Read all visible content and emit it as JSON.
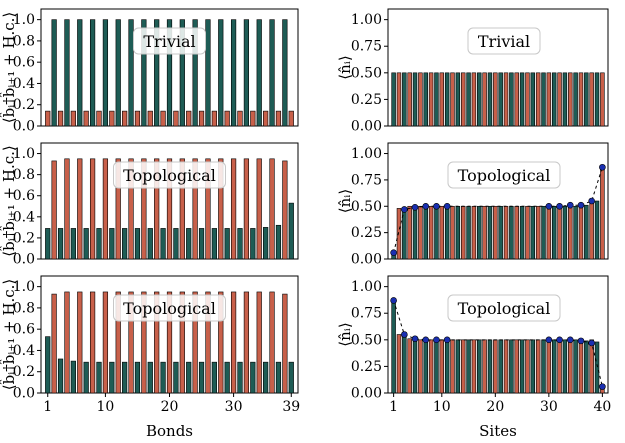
{
  "colors": {
    "red": "#c8604a",
    "teal": "#1e5c55",
    "dot": "#1a2fb0",
    "edge": "#000000"
  },
  "chart_data": [
    {
      "type": "bar",
      "column": "bonds",
      "row": 0,
      "ylabel": "⟨b̂ᵢ†b̂ᵢ₊₁ + H.c.⟩",
      "xlabel": "",
      "ylim": [
        0,
        1.1
      ],
      "yticks": [
        "0.0",
        "0.2",
        "0.4",
        "0.6",
        "0.8",
        "1.0"
      ],
      "xticks": [],
      "annotation": "Trivial",
      "x": [
        1,
        2,
        3,
        4,
        5,
        6,
        7,
        8,
        9,
        10,
        11,
        12,
        13,
        14,
        15,
        16,
        17,
        18,
        19,
        20,
        21,
        22,
        23,
        24,
        25,
        26,
        27,
        28,
        29,
        30,
        31,
        32,
        33,
        34,
        35,
        36,
        37,
        38,
        39
      ],
      "values": [
        0.14,
        1.0,
        0.14,
        1.0,
        0.14,
        1.0,
        0.14,
        1.0,
        0.14,
        1.0,
        0.14,
        1.0,
        0.14,
        1.0,
        0.14,
        1.0,
        0.14,
        1.0,
        0.14,
        1.0,
        0.14,
        1.0,
        0.14,
        1.0,
        0.14,
        1.0,
        0.14,
        1.0,
        0.14,
        1.0,
        0.14,
        1.0,
        0.14,
        1.0,
        0.14,
        1.0,
        0.14,
        1.0,
        0.14
      ]
    },
    {
      "type": "bar",
      "column": "sites",
      "row": 0,
      "ylabel": "⟨n̂ᵢ⟩",
      "xlabel": "",
      "ylim": [
        0,
        1.1
      ],
      "yticks": [
        "0.00",
        "0.25",
        "0.50",
        "0.75",
        "1.00"
      ],
      "xticks": [],
      "annotation": "Trivial",
      "x": [
        1,
        2,
        3,
        4,
        5,
        6,
        7,
        8,
        9,
        10,
        11,
        12,
        13,
        14,
        15,
        16,
        17,
        18,
        19,
        20,
        21,
        22,
        23,
        24,
        25,
        26,
        27,
        28,
        29,
        30,
        31,
        32,
        33,
        34,
        35,
        36,
        37,
        38,
        39,
        40
      ],
      "values": [
        0.5,
        0.5,
        0.5,
        0.5,
        0.5,
        0.5,
        0.5,
        0.5,
        0.5,
        0.5,
        0.5,
        0.5,
        0.5,
        0.5,
        0.5,
        0.5,
        0.5,
        0.5,
        0.5,
        0.5,
        0.5,
        0.5,
        0.5,
        0.5,
        0.5,
        0.5,
        0.5,
        0.5,
        0.5,
        0.5,
        0.5,
        0.5,
        0.5,
        0.5,
        0.5,
        0.5,
        0.5,
        0.5,
        0.5,
        0.5
      ],
      "dots": []
    },
    {
      "type": "bar",
      "column": "bonds",
      "row": 1,
      "ylabel": "⟨b̂ᵢ†b̂ᵢ₊₁ + H.c.⟩",
      "xlabel": "",
      "ylim": [
        0,
        1.1
      ],
      "yticks": [
        "0.0",
        "0.2",
        "0.4",
        "0.6",
        "0.8",
        "1.0"
      ],
      "xticks": [],
      "annotation": "Topological",
      "x": [
        1,
        2,
        3,
        4,
        5,
        6,
        7,
        8,
        9,
        10,
        11,
        12,
        13,
        14,
        15,
        16,
        17,
        18,
        19,
        20,
        21,
        22,
        23,
        24,
        25,
        26,
        27,
        28,
        29,
        30,
        31,
        32,
        33,
        34,
        35,
        36,
        37,
        38,
        39
      ],
      "values": [
        0.29,
        0.93,
        0.29,
        0.95,
        0.29,
        0.95,
        0.29,
        0.95,
        0.29,
        0.95,
        0.29,
        0.95,
        0.29,
        0.95,
        0.29,
        0.95,
        0.29,
        0.95,
        0.29,
        0.95,
        0.29,
        0.95,
        0.29,
        0.95,
        0.29,
        0.95,
        0.29,
        0.95,
        0.29,
        0.95,
        0.29,
        0.95,
        0.29,
        0.95,
        0.3,
        0.95,
        0.32,
        0.93,
        0.53
      ]
    },
    {
      "type": "bar",
      "column": "sites",
      "row": 1,
      "ylabel": "⟨n̂ᵢ⟩",
      "xlabel": "",
      "ylim": [
        0,
        1.1
      ],
      "yticks": [
        "0.00",
        "0.25",
        "0.50",
        "0.75",
        "1.00"
      ],
      "xticks": [],
      "annotation": "Topological",
      "x": [
        1,
        2,
        3,
        4,
        5,
        6,
        7,
        8,
        9,
        10,
        11,
        12,
        13,
        14,
        15,
        16,
        17,
        18,
        19,
        20,
        21,
        22,
        23,
        24,
        25,
        26,
        27,
        28,
        29,
        30,
        31,
        32,
        33,
        34,
        35,
        36,
        37,
        38,
        39,
        40
      ],
      "values": [
        0.06,
        0.48,
        0.49,
        0.5,
        0.49,
        0.5,
        0.5,
        0.5,
        0.5,
        0.5,
        0.5,
        0.5,
        0.5,
        0.5,
        0.5,
        0.5,
        0.5,
        0.5,
        0.5,
        0.5,
        0.5,
        0.5,
        0.5,
        0.5,
        0.5,
        0.5,
        0.5,
        0.5,
        0.5,
        0.5,
        0.5,
        0.5,
        0.5,
        0.5,
        0.5,
        0.51,
        0.51,
        0.53,
        0.55,
        0.87
      ],
      "dots": [
        [
          1,
          0.06
        ],
        [
          3,
          0.47
        ],
        [
          5,
          0.49
        ],
        [
          7,
          0.5
        ],
        [
          9,
          0.5
        ],
        [
          11,
          0.5
        ],
        [
          30,
          0.5
        ],
        [
          32,
          0.5
        ],
        [
          34,
          0.51
        ],
        [
          36,
          0.51
        ],
        [
          38,
          0.55
        ],
        [
          40,
          0.87
        ]
      ]
    },
    {
      "type": "bar",
      "column": "bonds",
      "row": 2,
      "ylabel": "⟨b̂ᵢ†b̂ᵢ₊₁ + H.c.⟩",
      "xlabel": "Bonds",
      "ylim": [
        0,
        1.1
      ],
      "yticks": [
        "0.0",
        "0.2",
        "0.4",
        "0.6",
        "0.8",
        "1.0"
      ],
      "xticks": [
        "1",
        "10",
        "20",
        "30",
        "39"
      ],
      "xtick_values": [
        1,
        10,
        20,
        30,
        39
      ],
      "annotation": "Topological",
      "x": [
        1,
        2,
        3,
        4,
        5,
        6,
        7,
        8,
        9,
        10,
        11,
        12,
        13,
        14,
        15,
        16,
        17,
        18,
        19,
        20,
        21,
        22,
        23,
        24,
        25,
        26,
        27,
        28,
        29,
        30,
        31,
        32,
        33,
        34,
        35,
        36,
        37,
        38,
        39
      ],
      "values": [
        0.53,
        0.93,
        0.32,
        0.95,
        0.3,
        0.95,
        0.29,
        0.95,
        0.29,
        0.95,
        0.29,
        0.95,
        0.29,
        0.95,
        0.29,
        0.95,
        0.29,
        0.95,
        0.29,
        0.95,
        0.29,
        0.95,
        0.29,
        0.95,
        0.29,
        0.95,
        0.29,
        0.95,
        0.29,
        0.95,
        0.29,
        0.95,
        0.29,
        0.95,
        0.29,
        0.95,
        0.29,
        0.93,
        0.29
      ]
    },
    {
      "type": "bar",
      "column": "sites",
      "row": 2,
      "ylabel": "⟨n̂ᵢ⟩",
      "xlabel": "Sites",
      "ylim": [
        0,
        1.1
      ],
      "yticks": [
        "0.00",
        "0.25",
        "0.50",
        "0.75",
        "1.00"
      ],
      "xticks": [
        "1",
        "10",
        "20",
        "30",
        "40"
      ],
      "xtick_values": [
        1,
        10,
        20,
        30,
        40
      ],
      "annotation": "Topological",
      "x": [
        1,
        2,
        3,
        4,
        5,
        6,
        7,
        8,
        9,
        10,
        11,
        12,
        13,
        14,
        15,
        16,
        17,
        18,
        19,
        20,
        21,
        22,
        23,
        24,
        25,
        26,
        27,
        28,
        29,
        30,
        31,
        32,
        33,
        34,
        35,
        36,
        37,
        38,
        39,
        40
      ],
      "values": [
        0.87,
        0.55,
        0.53,
        0.51,
        0.51,
        0.5,
        0.5,
        0.5,
        0.5,
        0.5,
        0.5,
        0.5,
        0.5,
        0.5,
        0.5,
        0.5,
        0.5,
        0.5,
        0.5,
        0.5,
        0.5,
        0.5,
        0.5,
        0.5,
        0.5,
        0.5,
        0.5,
        0.5,
        0.5,
        0.5,
        0.5,
        0.5,
        0.5,
        0.5,
        0.5,
        0.5,
        0.49,
        0.5,
        0.48,
        0.06
      ],
      "dots": [
        [
          1,
          0.87
        ],
        [
          3,
          0.55
        ],
        [
          5,
          0.51
        ],
        [
          7,
          0.5
        ],
        [
          9,
          0.5
        ],
        [
          11,
          0.5
        ],
        [
          30,
          0.5
        ],
        [
          32,
          0.5
        ],
        [
          34,
          0.5
        ],
        [
          36,
          0.49
        ],
        [
          38,
          0.47
        ],
        [
          40,
          0.06
        ]
      ]
    }
  ]
}
